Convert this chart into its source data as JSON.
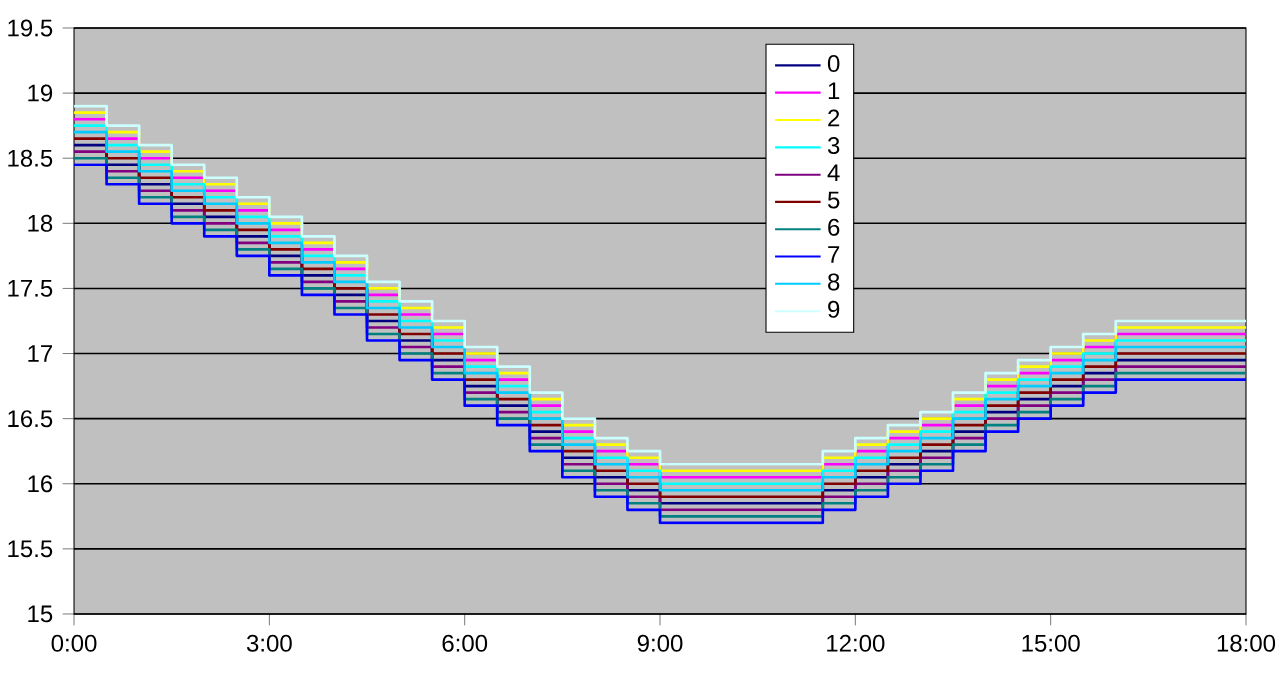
{
  "chart_data": {
    "type": "step",
    "x": [
      0,
      0.5,
      1,
      1.5,
      2,
      2.5,
      3,
      3.5,
      4,
      4.5,
      5,
      5.5,
      6,
      6.5,
      7,
      7.5,
      8,
      8.5,
      9,
      9.5,
      10,
      10.5,
      11,
      11.5,
      12,
      12.5,
      13,
      13.5,
      14,
      14.5,
      15,
      15.5,
      16,
      16.5,
      17,
      17.5,
      18
    ],
    "xlim": [
      0,
      18
    ],
    "xticks": [
      {
        "value": 0,
        "label": "0:00"
      },
      {
        "value": 3,
        "label": "3:00"
      },
      {
        "value": 6,
        "label": "6:00"
      },
      {
        "value": 9,
        "label": "9:00"
      },
      {
        "value": 12,
        "label": "12:00"
      },
      {
        "value": 15,
        "label": "15:00"
      },
      {
        "value": 18,
        "label": "18:00"
      }
    ],
    "ylim": [
      15,
      19.5
    ],
    "yticks": [
      15,
      15.5,
      16,
      16.5,
      17,
      17.5,
      18,
      18.5,
      19,
      19.5
    ],
    "grid": "y",
    "legend": "top",
    "marker": "none",
    "line_style": "solid",
    "series": [
      {
        "name": "0",
        "color": "#000080",
        "values": [
          18.6,
          18.45,
          18.3,
          18.15,
          18.05,
          17.9,
          17.75,
          17.6,
          17.45,
          17.25,
          17.1,
          16.95,
          16.75,
          16.6,
          16.4,
          16.2,
          16.05,
          15.95,
          15.85,
          15.85,
          15.85,
          15.85,
          15.85,
          15.95,
          16.05,
          16.15,
          16.25,
          16.4,
          16.55,
          16.65,
          16.75,
          16.85,
          16.95,
          16.95,
          16.95,
          16.95,
          16.95
        ]
      },
      {
        "name": "1",
        "color": "#ff00ff",
        "values": [
          18.8,
          18.65,
          18.5,
          18.35,
          18.25,
          18.1,
          17.95,
          17.8,
          17.65,
          17.45,
          17.3,
          17.15,
          16.95,
          16.8,
          16.6,
          16.4,
          16.25,
          16.15,
          16.05,
          16.05,
          16.05,
          16.05,
          16.05,
          16.15,
          16.25,
          16.35,
          16.45,
          16.6,
          16.75,
          16.85,
          16.95,
          17.05,
          17.15,
          17.15,
          17.15,
          17.15,
          17.15
        ]
      },
      {
        "name": "2",
        "color": "#ffff00",
        "values": [
          18.85,
          18.7,
          18.55,
          18.4,
          18.3,
          18.15,
          18.0,
          17.85,
          17.7,
          17.5,
          17.35,
          17.2,
          17.0,
          16.85,
          16.65,
          16.45,
          16.3,
          16.2,
          16.1,
          16.1,
          16.1,
          16.1,
          16.1,
          16.2,
          16.3,
          16.4,
          16.5,
          16.65,
          16.8,
          16.9,
          17.0,
          17.1,
          17.2,
          17.2,
          17.2,
          17.2,
          17.2
        ]
      },
      {
        "name": "3",
        "color": "#00ffff",
        "values": [
          18.75,
          18.6,
          18.45,
          18.3,
          18.2,
          18.05,
          17.9,
          17.75,
          17.6,
          17.4,
          17.25,
          17.1,
          16.9,
          16.75,
          16.55,
          16.35,
          16.2,
          16.1,
          16.0,
          16.0,
          16.0,
          16.0,
          16.0,
          16.1,
          16.2,
          16.3,
          16.4,
          16.55,
          16.7,
          16.8,
          16.9,
          17.0,
          17.1,
          17.1,
          17.1,
          17.1,
          17.1
        ]
      },
      {
        "name": "4",
        "color": "#800080",
        "values": [
          18.55,
          18.4,
          18.25,
          18.1,
          18.0,
          17.85,
          17.7,
          17.55,
          17.4,
          17.2,
          17.05,
          16.9,
          16.7,
          16.55,
          16.35,
          16.15,
          16.0,
          15.9,
          15.8,
          15.8,
          15.8,
          15.8,
          15.8,
          15.9,
          16.0,
          16.1,
          16.2,
          16.35,
          16.5,
          16.6,
          16.7,
          16.8,
          16.9,
          16.9,
          16.9,
          16.9,
          16.9
        ]
      },
      {
        "name": "5",
        "color": "#800000",
        "values": [
          18.65,
          18.5,
          18.35,
          18.2,
          18.1,
          17.95,
          17.8,
          17.65,
          17.5,
          17.3,
          17.15,
          17.0,
          16.8,
          16.65,
          16.45,
          16.25,
          16.1,
          16.0,
          15.9,
          15.9,
          15.9,
          15.9,
          15.9,
          16.0,
          16.1,
          16.2,
          16.3,
          16.45,
          16.6,
          16.7,
          16.8,
          16.9,
          17.0,
          17.0,
          17.0,
          17.0,
          17.0
        ]
      },
      {
        "name": "6",
        "color": "#008080",
        "values": [
          18.5,
          18.35,
          18.2,
          18.05,
          17.95,
          17.8,
          17.65,
          17.5,
          17.35,
          17.15,
          17.0,
          16.85,
          16.65,
          16.5,
          16.3,
          16.1,
          15.95,
          15.85,
          15.75,
          15.75,
          15.75,
          15.75,
          15.75,
          15.85,
          15.95,
          16.05,
          16.15,
          16.3,
          16.45,
          16.55,
          16.65,
          16.75,
          16.85,
          16.85,
          16.85,
          16.85,
          16.85
        ]
      },
      {
        "name": "7",
        "color": "#0000ff",
        "values": [
          18.45,
          18.3,
          18.15,
          18.0,
          17.9,
          17.75,
          17.6,
          17.45,
          17.3,
          17.1,
          16.95,
          16.8,
          16.6,
          16.45,
          16.25,
          16.05,
          15.9,
          15.8,
          15.7,
          15.7,
          15.7,
          15.7,
          15.7,
          15.8,
          15.9,
          16.0,
          16.1,
          16.25,
          16.4,
          16.5,
          16.6,
          16.7,
          16.8,
          16.8,
          16.8,
          16.8,
          16.8
        ]
      },
      {
        "name": "8",
        "color": "#00ccff",
        "values": [
          18.7,
          18.55,
          18.4,
          18.25,
          18.15,
          18.0,
          17.85,
          17.7,
          17.55,
          17.35,
          17.2,
          17.05,
          16.85,
          16.7,
          16.5,
          16.3,
          16.15,
          16.05,
          15.95,
          15.95,
          15.95,
          15.95,
          15.95,
          16.05,
          16.15,
          16.25,
          16.35,
          16.5,
          16.65,
          16.75,
          16.85,
          16.95,
          17.05,
          17.05,
          17.05,
          17.05,
          17.05
        ]
      },
      {
        "name": "9",
        "color": "#ccffff",
        "values": [
          18.9,
          18.75,
          18.6,
          18.45,
          18.35,
          18.2,
          18.05,
          17.9,
          17.75,
          17.55,
          17.4,
          17.25,
          17.05,
          16.9,
          16.7,
          16.5,
          16.35,
          16.25,
          16.15,
          16.15,
          16.15,
          16.15,
          16.15,
          16.25,
          16.35,
          16.45,
          16.55,
          16.7,
          16.85,
          16.95,
          17.05,
          17.15,
          17.25,
          17.25,
          17.25,
          17.25,
          17.25
        ]
      }
    ]
  }
}
